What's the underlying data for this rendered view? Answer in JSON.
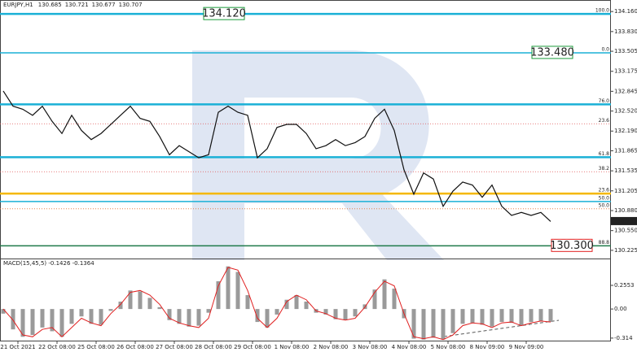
{
  "chart_data": {
    "type": "line",
    "symbol": "EURJPY,H1",
    "ohlc": [
      130.685,
      130.721,
      130.677,
      130.707
    ],
    "color": "#111111",
    "x": [
      2,
      8,
      14,
      20,
      26,
      32,
      38,
      44,
      50,
      56,
      62,
      68,
      74,
      80,
      86,
      92,
      98,
      104,
      110,
      116,
      122,
      128,
      134,
      140,
      146,
      152,
      158,
      164,
      170,
      176,
      182,
      188,
      194,
      200,
      206,
      212,
      218,
      224,
      230,
      236,
      242,
      248,
      254,
      260,
      266,
      272,
      278,
      284,
      290,
      296,
      302,
      308,
      314,
      320,
      326,
      332,
      338
    ],
    "values": [
      132.85,
      132.6,
      132.55,
      132.45,
      132.6,
      132.35,
      132.15,
      132.45,
      132.2,
      132.05,
      132.15,
      132.3,
      132.45,
      132.6,
      132.4,
      132.35,
      132.1,
      131.8,
      131.95,
      131.85,
      131.75,
      131.8,
      132.5,
      132.6,
      132.5,
      132.45,
      131.75,
      131.9,
      132.25,
      132.3,
      132.3,
      132.15,
      131.9,
      131.95,
      132.05,
      131.95,
      132.0,
      132.1,
      132.4,
      132.55,
      132.2,
      131.55,
      131.15,
      131.5,
      131.4,
      130.95,
      131.2,
      131.35,
      131.3,
      131.1,
      131.3,
      130.95,
      130.8,
      130.85,
      130.8,
      130.85,
      130.7
    ],
    "xlim": [
      0,
      375
    ],
    "xticks": [
      {
        "value": 11,
        "label": "21 Oct 2021"
      },
      {
        "value": 35,
        "label": "22 Oct 08:00"
      },
      {
        "value": 59,
        "label": "25 Oct 08:00"
      },
      {
        "value": 83,
        "label": "26 Oct 08:00"
      },
      {
        "value": 107,
        "label": "27 Oct 08:00"
      },
      {
        "value": 131,
        "label": "28 Oct 08:00"
      },
      {
        "value": 155,
        "label": "29 Oct 08:00"
      },
      {
        "value": 179,
        "label": "1 Nov 08:00"
      },
      {
        "value": 203,
        "label": "2 Nov 08:00"
      },
      {
        "value": 227,
        "label": "3 Nov 08:00"
      },
      {
        "value": 251,
        "label": "4 Nov 08:00"
      },
      {
        "value": 275,
        "label": "5 Nov 08:00"
      },
      {
        "value": 299,
        "label": "8 Nov 09:00"
      },
      {
        "value": 323,
        "label": "9 Nov 09:00"
      }
    ],
    "ylim": [
      130.09,
      134.35
    ],
    "yticks": [
      {
        "value": 134.16,
        "label": "134.160"
      },
      {
        "value": 133.83,
        "label": "133.830"
      },
      {
        "value": 133.505,
        "label": "133.505"
      },
      {
        "value": 133.175,
        "label": "133.175"
      },
      {
        "value": 132.845,
        "label": "132.845"
      },
      {
        "value": 132.52,
        "label": "132.520"
      },
      {
        "value": 132.19,
        "label": "132.190"
      },
      {
        "value": 131.865,
        "label": "131.865"
      },
      {
        "value": 131.535,
        "label": "131.535"
      },
      {
        "value": 131.205,
        "label": "131.205"
      },
      {
        "value": 130.88,
        "label": "130.880"
      },
      {
        "value": 130.55,
        "label": "130.550"
      },
      {
        "value": 130.225,
        "label": "130.225"
      }
    ],
    "levels": [
      {
        "value": 134.12,
        "label": "100.0",
        "color": "#1ab0d6",
        "style": "thick"
      },
      {
        "value": 133.48,
        "label": "0.0",
        "color": "#1ab0d6",
        "style": "solid"
      },
      {
        "value": 132.63,
        "label": "76.0",
        "color": "#1ab0d6",
        "style": "thick"
      },
      {
        "value": 132.31,
        "label": "23.6",
        "color": "#e05050",
        "style": "dotted"
      },
      {
        "value": 131.76,
        "label": "61.8",
        "color": "#1ab0d6",
        "style": "thick"
      },
      {
        "value": 131.52,
        "label": "38.2",
        "color": "#e05050",
        "style": "dotted"
      },
      {
        "value": 131.16,
        "label": "23.6",
        "color": "#f5b800",
        "style": "thick"
      },
      {
        "value": 131.03,
        "label": "50.0",
        "color": "#1ab0d6",
        "style": "solid"
      },
      {
        "value": 130.91,
        "label": "50.0",
        "color": "#e07030",
        "style": "dotted"
      },
      {
        "value": 130.3,
        "label": "88.8",
        "color": "#1f7a4a",
        "style": "solid"
      }
    ],
    "callouts": [
      {
        "value": 134.12,
        "label": "134.120",
        "color": "#1a9a3a"
      },
      {
        "value": 133.48,
        "label": "133.480",
        "color": "#1a9a3a"
      },
      {
        "value": 130.3,
        "label": "130.300",
        "color": "#e02020"
      }
    ],
    "last_price": {
      "value": 130.707,
      "label": "130.707"
    },
    "macd": {
      "title": "MACD(15,45,5) -0.1426 -0.1364",
      "ylim": [
        -0.35,
        0.51
      ],
      "yticks": [
        {
          "value": 0.2553,
          "label": "0.2553"
        },
        {
          "value": 0,
          "label": "0.00"
        },
        {
          "value": -0.314,
          "label": "-0.314"
        }
      ],
      "histogram": [
        -0.05,
        -0.22,
        -0.3,
        -0.28,
        -0.2,
        -0.24,
        -0.3,
        -0.16,
        -0.08,
        -0.16,
        -0.17,
        -0.02,
        0.08,
        0.2,
        0.19,
        0.12,
        0.02,
        -0.12,
        -0.16,
        -0.19,
        -0.18,
        -0.04,
        0.3,
        0.46,
        0.4,
        0.15,
        -0.14,
        -0.2,
        -0.06,
        0.1,
        0.15,
        0.08,
        -0.04,
        -0.06,
        -0.11,
        -0.12,
        -0.08,
        0.05,
        0.21,
        0.32,
        0.22,
        -0.1,
        -0.32,
        -0.33,
        -0.31,
        -0.33,
        -0.26,
        -0.16,
        -0.15,
        -0.17,
        -0.19,
        -0.14,
        -0.15,
        -0.18,
        -0.14,
        -0.13,
        -0.14
      ],
      "histogram_color": "#9a9a9a",
      "signal": [
        0.0,
        -0.12,
        -0.28,
        -0.3,
        -0.22,
        -0.2,
        -0.3,
        -0.2,
        -0.1,
        -0.15,
        -0.18,
        -0.05,
        0.05,
        0.18,
        0.2,
        0.15,
        0.05,
        -0.1,
        -0.15,
        -0.18,
        -0.2,
        -0.1,
        0.25,
        0.45,
        0.42,
        0.2,
        -0.1,
        -0.2,
        -0.1,
        0.08,
        0.15,
        0.1,
        -0.02,
        -0.05,
        -0.1,
        -0.12,
        -0.1,
        0.02,
        0.18,
        0.3,
        0.25,
        -0.05,
        -0.3,
        -0.32,
        -0.3,
        -0.33,
        -0.28,
        -0.18,
        -0.15,
        -0.16,
        -0.2,
        -0.15,
        -0.14,
        -0.18,
        -0.15,
        -0.13,
        -0.14
      ],
      "signal_color": "#e02020"
    }
  }
}
